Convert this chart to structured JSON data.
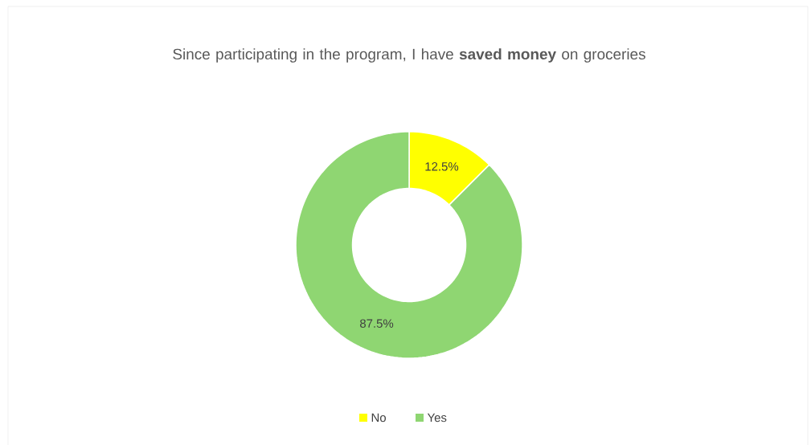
{
  "chart_data": {
    "type": "donut",
    "title": "Since participating in the program, I have **saved money** on groceries",
    "categories": [
      "No",
      "Yes"
    ],
    "values": [
      12.5,
      87.5
    ],
    "colors": [
      "#ffff00",
      "#8fd672"
    ],
    "value_labels": [
      "12.5%",
      "87.5%"
    ],
    "legend": "bottom"
  }
}
